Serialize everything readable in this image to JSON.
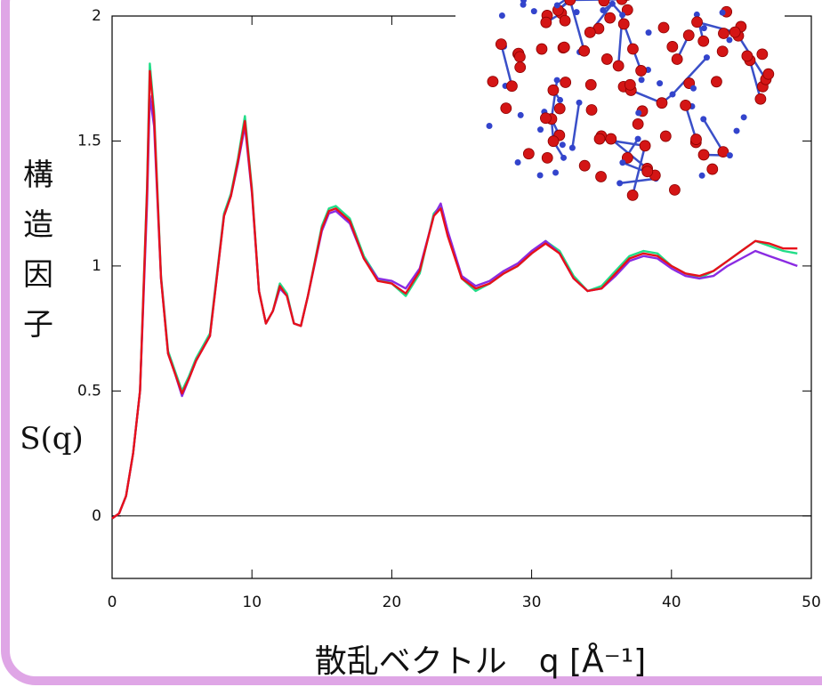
{
  "chart_data": {
    "type": "line",
    "ylabel": "構造因子",
    "ylabel_symbol": "S(q)",
    "xlabel": "散乱ベクトル　q [Å⁻¹]",
    "x": [
      0,
      0.5,
      1,
      1.5,
      2,
      2.5,
      2.7,
      3,
      3.5,
      4,
      4.5,
      5,
      5.5,
      6,
      7,
      8,
      8.5,
      9,
      9.5,
      10,
      10.5,
      11,
      11.5,
      12,
      12.5,
      13,
      13.5,
      14,
      15,
      15.5,
      16,
      17,
      18,
      19,
      20,
      21,
      22,
      23,
      23.5,
      24,
      25,
      26,
      27,
      28,
      29,
      30,
      31,
      32,
      33,
      34,
      35,
      36,
      37,
      38,
      39,
      40,
      41,
      42,
      43,
      44,
      45,
      46,
      47,
      48,
      49
    ],
    "series": [
      {
        "color": "#22dd88",
        "values": [
          -0.01,
          0.01,
          0.08,
          0.25,
          0.5,
          1.32,
          1.81,
          1.62,
          0.96,
          0.66,
          0.58,
          0.5,
          0.56,
          0.63,
          0.73,
          1.21,
          1.29,
          1.43,
          1.6,
          1.31,
          0.9,
          0.77,
          0.82,
          0.93,
          0.89,
          0.77,
          0.76,
          0.88,
          1.16,
          1.23,
          1.24,
          1.19,
          1.04,
          0.95,
          0.93,
          0.88,
          0.97,
          1.21,
          1.24,
          1.13,
          0.95,
          0.9,
          0.93,
          0.97,
          1.0,
          1.05,
          1.1,
          1.06,
          0.96,
          0.9,
          0.92,
          0.98,
          1.04,
          1.06,
          1.05,
          1.0,
          0.97,
          0.95,
          0.98,
          1.02,
          1.06,
          1.1,
          1.08,
          1.06,
          1.05
        ]
      },
      {
        "color": "#8a2be2",
        "values": [
          -0.01,
          0.01,
          0.08,
          0.25,
          0.5,
          1.25,
          1.68,
          1.56,
          0.95,
          0.65,
          0.57,
          0.48,
          0.55,
          0.62,
          0.72,
          1.2,
          1.28,
          1.41,
          1.56,
          1.29,
          0.9,
          0.77,
          0.82,
          0.91,
          0.88,
          0.77,
          0.76,
          0.88,
          1.14,
          1.21,
          1.22,
          1.17,
          1.03,
          0.95,
          0.94,
          0.91,
          0.99,
          1.2,
          1.25,
          1.14,
          0.96,
          0.92,
          0.94,
          0.98,
          1.01,
          1.06,
          1.1,
          1.05,
          0.95,
          0.9,
          0.91,
          0.96,
          1.02,
          1.04,
          1.03,
          0.99,
          0.96,
          0.95,
          0.96,
          1.0,
          1.03,
          1.06,
          1.04,
          1.02,
          1.0
        ]
      },
      {
        "color": "#e8101a",
        "values": [
          -0.01,
          0.01,
          0.08,
          0.25,
          0.5,
          1.3,
          1.78,
          1.6,
          0.95,
          0.65,
          0.57,
          0.49,
          0.55,
          0.62,
          0.72,
          1.2,
          1.28,
          1.42,
          1.58,
          1.3,
          0.9,
          0.77,
          0.82,
          0.92,
          0.88,
          0.77,
          0.76,
          0.88,
          1.15,
          1.22,
          1.23,
          1.18,
          1.03,
          0.94,
          0.93,
          0.89,
          0.98,
          1.2,
          1.23,
          1.12,
          0.95,
          0.91,
          0.93,
          0.97,
          1.0,
          1.05,
          1.09,
          1.05,
          0.95,
          0.9,
          0.91,
          0.97,
          1.03,
          1.05,
          1.04,
          1.0,
          0.97,
          0.96,
          0.98,
          1.02,
          1.06,
          1.1,
          1.09,
          1.07,
          1.07
        ]
      }
    ],
    "xlim": [
      0,
      50
    ],
    "xticks": [
      0,
      10,
      20,
      30,
      40,
      50
    ],
    "ylim": [
      -0.25,
      2
    ],
    "yticks": [
      0,
      0.5,
      1,
      1.5,
      2
    ]
  }
}
